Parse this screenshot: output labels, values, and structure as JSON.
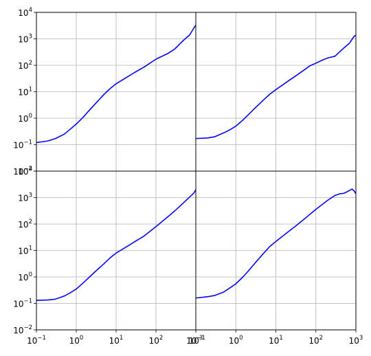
{
  "chart_data": [
    {
      "type": "line",
      "position": "top-left",
      "xscale": "log",
      "yscale": "log",
      "xlim": [
        0.1,
        1000
      ],
      "ylim": [
        0.01,
        10000
      ],
      "grid": true,
      "color": "#0000ff",
      "xlabel": "",
      "ylabel": "",
      "title": "",
      "x": [
        0.1,
        0.15,
        0.2,
        0.3,
        0.5,
        0.7,
        1,
        1.5,
        2,
        3,
        5,
        7,
        10,
        20,
        30,
        50,
        100,
        200,
        300,
        400,
        500,
        700,
        900,
        1000
      ],
      "y": [
        0.12,
        0.13,
        0.14,
        0.17,
        0.25,
        0.38,
        0.6,
        1.1,
        1.8,
        3.5,
        8,
        13,
        20,
        38,
        55,
        85,
        170,
        280,
        420,
        650,
        900,
        1400,
        2600,
        3300
      ]
    },
    {
      "type": "line",
      "position": "top-right",
      "xscale": "log",
      "yscale": "log",
      "xlim": [
        0.1,
        1000
      ],
      "ylim": [
        0.01,
        10000
      ],
      "grid": true,
      "color": "#0000ff",
      "xlabel": "",
      "ylabel": "",
      "title": "",
      "x": [
        0.1,
        0.2,
        0.3,
        0.5,
        0.7,
        1,
        1.5,
        2,
        3,
        5,
        7,
        10,
        20,
        30,
        50,
        70,
        100,
        150,
        200,
        300,
        500,
        700,
        900,
        1000
      ],
      "y": [
        0.17,
        0.18,
        0.2,
        0.28,
        0.36,
        0.5,
        0.85,
        1.3,
        2.4,
        5,
        8,
        12,
        25,
        38,
        65,
        95,
        120,
        160,
        190,
        220,
        450,
        700,
        1250,
        1350
      ]
    },
    {
      "type": "line",
      "position": "bottom-left",
      "xscale": "log",
      "yscale": "log",
      "xlim": [
        0.1,
        1000
      ],
      "ylim": [
        0.01,
        10000
      ],
      "grid": true,
      "color": "#0000ff",
      "xlabel": "",
      "ylabel": "",
      "title": "",
      "x": [
        0.1,
        0.2,
        0.3,
        0.5,
        0.7,
        1,
        1.5,
        2,
        3,
        5,
        7,
        10,
        20,
        30,
        50,
        100,
        200,
        300,
        500,
        700,
        900,
        1000
      ],
      "y": [
        0.13,
        0.135,
        0.145,
        0.19,
        0.25,
        0.35,
        0.6,
        0.9,
        1.6,
        3.2,
        5.2,
        8,
        15,
        22,
        35,
        80,
        190,
        320,
        650,
        1050,
        1500,
        2000
      ]
    },
    {
      "type": "line",
      "position": "bottom-right",
      "xscale": "log",
      "yscale": "log",
      "xlim": [
        0.1,
        1000
      ],
      "ylim": [
        0.01,
        10000
      ],
      "grid": true,
      "color": "#0000ff",
      "xlabel": "",
      "ylabel": "",
      "title": "",
      "x": [
        0.1,
        0.2,
        0.3,
        0.5,
        0.7,
        1,
        1.5,
        2,
        3,
        5,
        7,
        10,
        20,
        30,
        50,
        100,
        200,
        300,
        400,
        500,
        600,
        800,
        900,
        1000
      ],
      "y": [
        0.16,
        0.18,
        0.2,
        0.27,
        0.38,
        0.55,
        1,
        1.6,
        3.3,
        8,
        14,
        22,
        50,
        80,
        150,
        360,
        800,
        1200,
        1400,
        1450,
        1650,
        2100,
        1800,
        1400
      ]
    }
  ],
  "axis_tick_labels": {
    "x": [
      {
        "base": "10",
        "exp": "−1"
      },
      {
        "base": "10",
        "exp": "0"
      },
      {
        "base": "10",
        "exp": "1"
      },
      {
        "base": "10",
        "exp": "2"
      },
      {
        "base": "10",
        "exp": "3"
      }
    ],
    "y": [
      {
        "base": "10",
        "exp": "−2"
      },
      {
        "base": "10",
        "exp": "−1"
      },
      {
        "base": "10",
        "exp": "0"
      },
      {
        "base": "10",
        "exp": "1"
      },
      {
        "base": "10",
        "exp": "2"
      },
      {
        "base": "10",
        "exp": "3"
      },
      {
        "base": "10",
        "exp": "4"
      }
    ]
  }
}
